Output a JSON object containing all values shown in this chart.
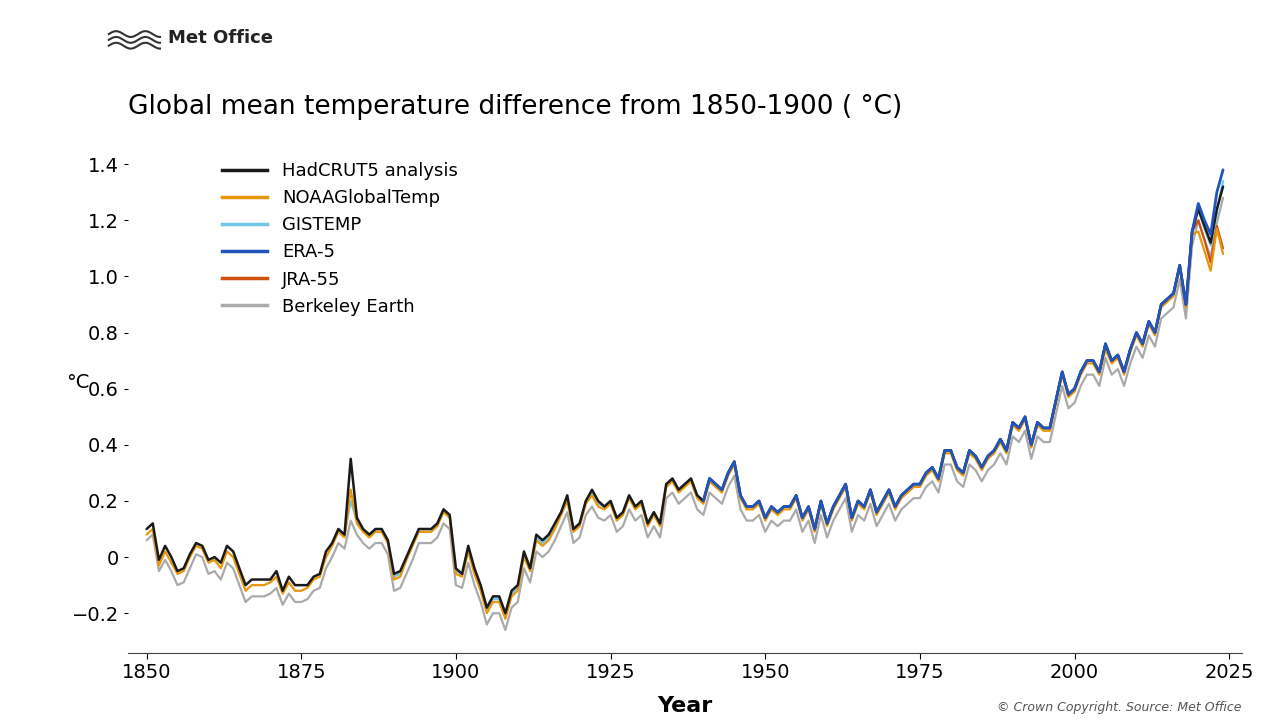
{
  "title": "Global mean temperature difference from 1850-1900 ( °C)",
  "ylabel": "°C",
  "xlabel": "Year",
  "copyright": "© Crown Copyright. Source: Met Office",
  "met_office_label": "Met Office",
  "xlim": [
    1847,
    2027
  ],
  "ylim": [
    -0.34,
    1.52
  ],
  "yticks": [
    -0.2,
    0.0,
    0.2,
    0.4,
    0.6,
    0.8,
    1.0,
    1.2,
    1.4
  ],
  "xticks": [
    1850,
    1875,
    1900,
    1925,
    1950,
    1975,
    2000,
    2025
  ],
  "series": {
    "HadCRUT5 analysis": {
      "color": "#1a1a1a",
      "lw": 1.8,
      "zorder": 6
    },
    "NOAAGlobalTemp": {
      "color": "#E8960A",
      "lw": 1.6,
      "zorder": 5
    },
    "GISTEMP": {
      "color": "#72C7E8",
      "lw": 1.6,
      "zorder": 4
    },
    "ERA-5": {
      "color": "#2255BB",
      "lw": 2.0,
      "zorder": 7
    },
    "JRA-55": {
      "color": "#D05010",
      "lw": 1.6,
      "zorder": 3
    },
    "Berkeley Earth": {
      "color": "#AAAAAA",
      "lw": 1.6,
      "zorder": 2
    }
  },
  "legend_order": [
    "HadCRUT5 analysis",
    "NOAAGlobalTemp",
    "GISTEMP",
    "ERA-5",
    "JRA-55",
    "Berkeley Earth"
  ],
  "background_color": "#ffffff"
}
